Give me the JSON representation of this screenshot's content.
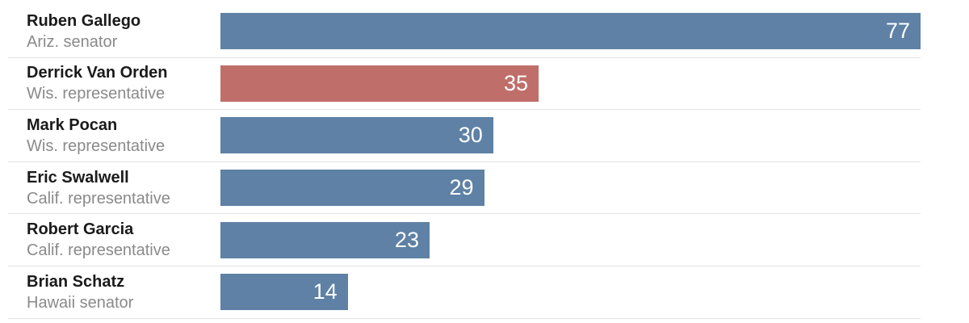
{
  "chart_data": {
    "type": "bar",
    "orientation": "horizontal",
    "title": "",
    "xlabel": "",
    "ylabel": "",
    "max_value": 77,
    "xlim": [
      0,
      77
    ],
    "grid": false,
    "legend": "none",
    "categories": [
      "Ruben Gallego",
      "Derrick Van Orden",
      "Mark Pocan",
      "Eric Swalwell",
      "Robert Garcia",
      "Brian Schatz"
    ],
    "values": [
      77,
      35,
      30,
      29,
      23,
      14
    ],
    "bars": [
      {
        "name": "Ruben Gallego",
        "role": "Ariz. senator",
        "value": 77,
        "color": "#5e81a5"
      },
      {
        "name": "Derrick Van Orden",
        "role": "Wis. representative",
        "value": 35,
        "color": "#c06e6a"
      },
      {
        "name": "Mark Pocan",
        "role": "Wis. representative",
        "value": 30,
        "color": "#5e81a5"
      },
      {
        "name": "Eric Swalwell",
        "role": "Calif. representative",
        "value": 29,
        "color": "#5e81a5"
      },
      {
        "name": "Robert Garcia",
        "role": "Calif. representative",
        "value": 23,
        "color": "#5e81a5"
      },
      {
        "name": "Brian Schatz",
        "role": "Hawaii senator",
        "value": 14,
        "color": "#5e81a5"
      }
    ],
    "colors": {
      "bar_default": "#5e81a5",
      "bar_highlight": "#c06e6a",
      "divider": "#e2e2e2",
      "name_text": "#1a1a1a",
      "role_text": "#8a8a8a",
      "value_text": "#ffffff"
    }
  }
}
